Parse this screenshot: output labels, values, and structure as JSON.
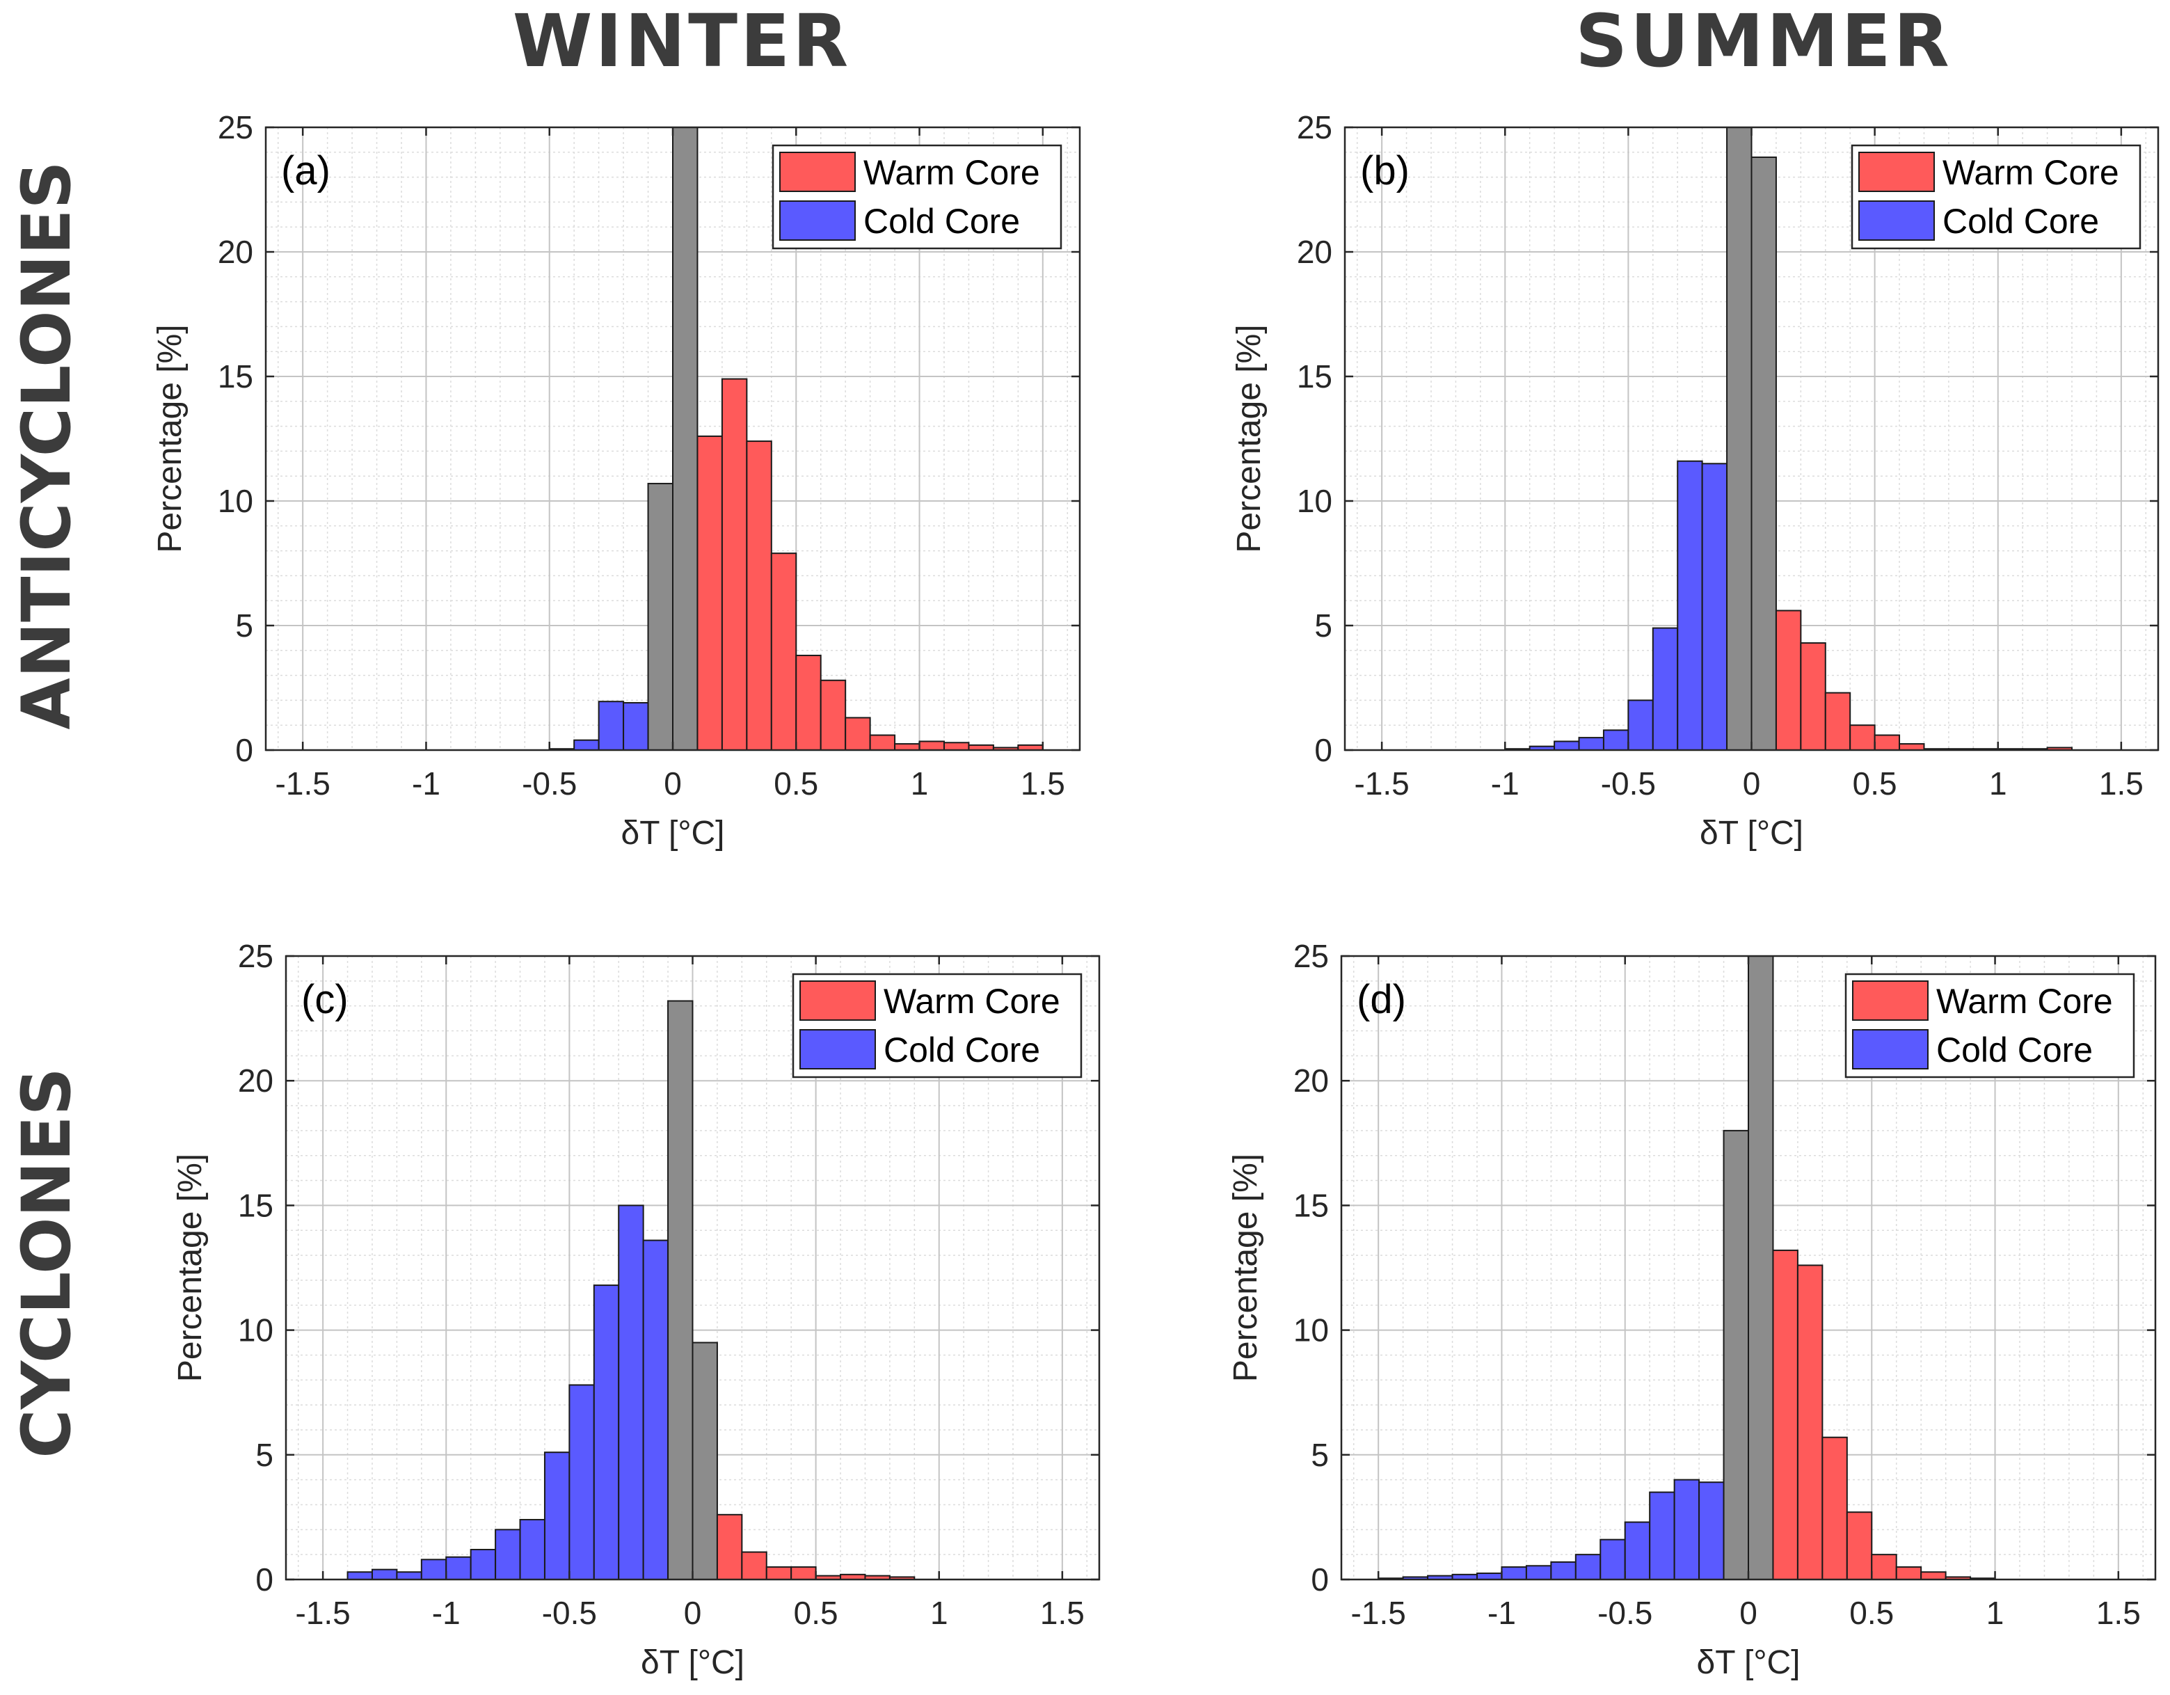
{
  "figure": {
    "column_titles": [
      "WINTER",
      "SUMMER"
    ],
    "row_titles": [
      "ANTICYCLONES",
      "CYCLONES"
    ],
    "colors": {
      "warm": "#ff5a5a",
      "cold": "#5a5aff",
      "neutral": "#8c8c8c",
      "edge": "#1a1a1a"
    }
  },
  "chart_data": [
    {
      "type": "bar",
      "panel_label": "(a)",
      "xlabel": "δT  [°C]",
      "ylabel": "Percentage [%]",
      "xlim": [
        -1.65,
        1.65
      ],
      "ylim": [
        0,
        25
      ],
      "xticks": [
        -1.5,
        -1,
        -0.5,
        0,
        0.5,
        1,
        1.5
      ],
      "xtick_labels": [
        "-1.5",
        "-1",
        "-0.5",
        "0",
        "0.5",
        "1",
        "1.5"
      ],
      "yticks": [
        0,
        5,
        10,
        15,
        20,
        25
      ],
      "grid": true,
      "legend": {
        "placement": "top-right",
        "entries": [
          "Warm Core",
          "Cold Core"
        ]
      },
      "bin_width": 0.1,
      "x": [
        -0.5,
        -0.4,
        -0.3,
        -0.2,
        -0.1,
        0.0,
        0.1,
        0.2,
        0.3,
        0.4,
        0.5,
        0.6,
        0.7,
        0.8,
        0.9,
        1.0,
        1.1,
        1.2,
        1.3,
        1.4
      ],
      "values": [
        0.05,
        0.4,
        1.95,
        1.9,
        10.7,
        25.0,
        12.6,
        14.9,
        12.4,
        7.9,
        3.8,
        2.8,
        1.3,
        0.6,
        0.25,
        0.35,
        0.3,
        0.2,
        0.1,
        0.2
      ],
      "classes": [
        "cold",
        "cold",
        "cold",
        "cold",
        "neutral",
        "neutral",
        "warm",
        "warm",
        "warm",
        "warm",
        "warm",
        "warm",
        "warm",
        "warm",
        "warm",
        "warm",
        "warm",
        "warm",
        "warm",
        "warm"
      ]
    },
    {
      "type": "bar",
      "panel_label": "(b)",
      "xlabel": "δT  [°C]",
      "ylabel": "Percentage [%]",
      "xlim": [
        -1.65,
        1.65
      ],
      "ylim": [
        0,
        25
      ],
      "xticks": [
        -1.5,
        -1,
        -0.5,
        0,
        0.5,
        1,
        1.5
      ],
      "xtick_labels": [
        "-1.5",
        "-1",
        "-0.5",
        "0",
        "0.5",
        "1",
        "1.5"
      ],
      "yticks": [
        0,
        5,
        10,
        15,
        20,
        25
      ],
      "grid": true,
      "legend": {
        "placement": "top-right",
        "entries": [
          "Warm Core",
          "Cold Core"
        ]
      },
      "bin_width": 0.1,
      "x": [
        -1.0,
        -0.9,
        -0.8,
        -0.7,
        -0.6,
        -0.5,
        -0.4,
        -0.3,
        -0.2,
        -0.1,
        0.0,
        0.1,
        0.2,
        0.3,
        0.4,
        0.5,
        0.6,
        0.7,
        0.8,
        0.9,
        1.0,
        1.1,
        1.2
      ],
      "values": [
        0.05,
        0.15,
        0.35,
        0.5,
        0.8,
        2.0,
        4.9,
        11.6,
        11.5,
        25.0,
        23.8,
        5.6,
        4.3,
        2.3,
        1.0,
        0.6,
        0.25,
        0.05,
        0.05,
        0.05,
        0.05,
        0.05,
        0.1
      ],
      "classes": [
        "cold",
        "cold",
        "cold",
        "cold",
        "cold",
        "cold",
        "cold",
        "cold",
        "cold",
        "neutral",
        "neutral",
        "warm",
        "warm",
        "warm",
        "warm",
        "warm",
        "warm",
        "warm",
        "warm",
        "warm",
        "warm",
        "warm",
        "warm"
      ]
    },
    {
      "type": "bar",
      "panel_label": "(c)",
      "xlabel": "δT  [°C]",
      "ylabel": "Percentage [%]",
      "xlim": [
        -1.65,
        1.65
      ],
      "ylim": [
        0,
        25
      ],
      "xticks": [
        -1.5,
        -1,
        -0.5,
        0,
        0.5,
        1,
        1.5
      ],
      "xtick_labels": [
        "-1.5",
        "-1",
        "-0.5",
        "0",
        "0.5",
        "1",
        "1.5"
      ],
      "yticks": [
        0,
        5,
        10,
        15,
        20,
        25
      ],
      "grid": true,
      "legend": {
        "placement": "top-right",
        "entries": [
          "Warm Core",
          "Cold Core"
        ]
      },
      "bin_width": 0.1,
      "x": [
        -1.4,
        -1.3,
        -1.2,
        -1.1,
        -1.0,
        -0.9,
        -0.8,
        -0.7,
        -0.6,
        -0.5,
        -0.4,
        -0.3,
        -0.2,
        -0.1,
        0.0,
        0.1,
        0.2,
        0.3,
        0.4,
        0.5,
        0.6,
        0.7,
        0.8
      ],
      "values": [
        0.3,
        0.4,
        0.3,
        0.8,
        0.9,
        1.2,
        2.0,
        2.4,
        5.1,
        7.8,
        11.8,
        15.0,
        13.6,
        23.2,
        9.5,
        2.6,
        1.1,
        0.5,
        0.5,
        0.15,
        0.2,
        0.15,
        0.1
      ],
      "classes": [
        "cold",
        "cold",
        "cold",
        "cold",
        "cold",
        "cold",
        "cold",
        "cold",
        "cold",
        "cold",
        "cold",
        "cold",
        "cold",
        "neutral",
        "neutral",
        "warm",
        "warm",
        "warm",
        "warm",
        "warm",
        "warm",
        "warm",
        "warm"
      ]
    },
    {
      "type": "bar",
      "panel_label": "(d)",
      "xlabel": "δT  [°C]",
      "ylabel": "Percentage [%]",
      "xlim": [
        -1.65,
        1.65
      ],
      "ylim": [
        0,
        25
      ],
      "xticks": [
        -1.5,
        -1,
        -0.5,
        0,
        0.5,
        1,
        1.5
      ],
      "xtick_labels": [
        "-1.5",
        "-1",
        "-0.5",
        "0",
        "0.5",
        "1",
        "1.5"
      ],
      "yticks": [
        0,
        5,
        10,
        15,
        20,
        25
      ],
      "grid": true,
      "legend": {
        "placement": "top-right",
        "entries": [
          "Warm Core",
          "Cold Core"
        ]
      },
      "bin_width": 0.1,
      "x": [
        -1.5,
        -1.4,
        -1.3,
        -1.2,
        -1.1,
        -1.0,
        -0.9,
        -0.8,
        -0.7,
        -0.6,
        -0.5,
        -0.4,
        -0.3,
        -0.2,
        -0.1,
        0.0,
        0.1,
        0.2,
        0.3,
        0.4,
        0.5,
        0.6,
        0.7,
        0.8,
        0.9
      ],
      "values": [
        0.05,
        0.1,
        0.15,
        0.2,
        0.25,
        0.5,
        0.55,
        0.7,
        1.0,
        1.6,
        2.3,
        3.5,
        4.0,
        3.9,
        18.0,
        25.0,
        13.2,
        12.6,
        5.7,
        2.7,
        1.0,
        0.5,
        0.3,
        0.1,
        0.05
      ],
      "classes": [
        "cold",
        "cold",
        "cold",
        "cold",
        "cold",
        "cold",
        "cold",
        "cold",
        "cold",
        "cold",
        "cold",
        "cold",
        "cold",
        "cold",
        "neutral",
        "neutral",
        "warm",
        "warm",
        "warm",
        "warm",
        "warm",
        "warm",
        "warm",
        "warm",
        "warm"
      ]
    }
  ]
}
